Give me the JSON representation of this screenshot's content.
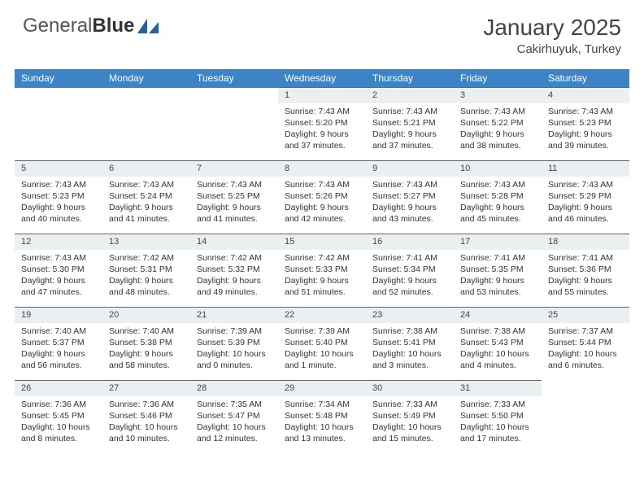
{
  "brand": {
    "part1": "General",
    "part2": "Blue"
  },
  "title": "January 2025",
  "location": "Cakirhuyuk, Turkey",
  "header_bg": "#3d84c6",
  "daynum_bg": "#eceff2",
  "row_border": "#4a6a8a",
  "columns": [
    "Sunday",
    "Monday",
    "Tuesday",
    "Wednesday",
    "Thursday",
    "Friday",
    "Saturday"
  ],
  "weeks": [
    [
      null,
      null,
      null,
      {
        "n": "1",
        "sr": "7:43 AM",
        "ss": "5:20 PM",
        "dl": "9 hours and 37 minutes."
      },
      {
        "n": "2",
        "sr": "7:43 AM",
        "ss": "5:21 PM",
        "dl": "9 hours and 37 minutes."
      },
      {
        "n": "3",
        "sr": "7:43 AM",
        "ss": "5:22 PM",
        "dl": "9 hours and 38 minutes."
      },
      {
        "n": "4",
        "sr": "7:43 AM",
        "ss": "5:23 PM",
        "dl": "9 hours and 39 minutes."
      }
    ],
    [
      {
        "n": "5",
        "sr": "7:43 AM",
        "ss": "5:23 PM",
        "dl": "9 hours and 40 minutes."
      },
      {
        "n": "6",
        "sr": "7:43 AM",
        "ss": "5:24 PM",
        "dl": "9 hours and 41 minutes."
      },
      {
        "n": "7",
        "sr": "7:43 AM",
        "ss": "5:25 PM",
        "dl": "9 hours and 41 minutes."
      },
      {
        "n": "8",
        "sr": "7:43 AM",
        "ss": "5:26 PM",
        "dl": "9 hours and 42 minutes."
      },
      {
        "n": "9",
        "sr": "7:43 AM",
        "ss": "5:27 PM",
        "dl": "9 hours and 43 minutes."
      },
      {
        "n": "10",
        "sr": "7:43 AM",
        "ss": "5:28 PM",
        "dl": "9 hours and 45 minutes."
      },
      {
        "n": "11",
        "sr": "7:43 AM",
        "ss": "5:29 PM",
        "dl": "9 hours and 46 minutes."
      }
    ],
    [
      {
        "n": "12",
        "sr": "7:43 AM",
        "ss": "5:30 PM",
        "dl": "9 hours and 47 minutes."
      },
      {
        "n": "13",
        "sr": "7:42 AM",
        "ss": "5:31 PM",
        "dl": "9 hours and 48 minutes."
      },
      {
        "n": "14",
        "sr": "7:42 AM",
        "ss": "5:32 PM",
        "dl": "9 hours and 49 minutes."
      },
      {
        "n": "15",
        "sr": "7:42 AM",
        "ss": "5:33 PM",
        "dl": "9 hours and 51 minutes."
      },
      {
        "n": "16",
        "sr": "7:41 AM",
        "ss": "5:34 PM",
        "dl": "9 hours and 52 minutes."
      },
      {
        "n": "17",
        "sr": "7:41 AM",
        "ss": "5:35 PM",
        "dl": "9 hours and 53 minutes."
      },
      {
        "n": "18",
        "sr": "7:41 AM",
        "ss": "5:36 PM",
        "dl": "9 hours and 55 minutes."
      }
    ],
    [
      {
        "n": "19",
        "sr": "7:40 AM",
        "ss": "5:37 PM",
        "dl": "9 hours and 56 minutes."
      },
      {
        "n": "20",
        "sr": "7:40 AM",
        "ss": "5:38 PM",
        "dl": "9 hours and 58 minutes."
      },
      {
        "n": "21",
        "sr": "7:39 AM",
        "ss": "5:39 PM",
        "dl": "10 hours and 0 minutes."
      },
      {
        "n": "22",
        "sr": "7:39 AM",
        "ss": "5:40 PM",
        "dl": "10 hours and 1 minute."
      },
      {
        "n": "23",
        "sr": "7:38 AM",
        "ss": "5:41 PM",
        "dl": "10 hours and 3 minutes."
      },
      {
        "n": "24",
        "sr": "7:38 AM",
        "ss": "5:43 PM",
        "dl": "10 hours and 4 minutes."
      },
      {
        "n": "25",
        "sr": "7:37 AM",
        "ss": "5:44 PM",
        "dl": "10 hours and 6 minutes."
      }
    ],
    [
      {
        "n": "26",
        "sr": "7:36 AM",
        "ss": "5:45 PM",
        "dl": "10 hours and 8 minutes."
      },
      {
        "n": "27",
        "sr": "7:36 AM",
        "ss": "5:46 PM",
        "dl": "10 hours and 10 minutes."
      },
      {
        "n": "28",
        "sr": "7:35 AM",
        "ss": "5:47 PM",
        "dl": "10 hours and 12 minutes."
      },
      {
        "n": "29",
        "sr": "7:34 AM",
        "ss": "5:48 PM",
        "dl": "10 hours and 13 minutes."
      },
      {
        "n": "30",
        "sr": "7:33 AM",
        "ss": "5:49 PM",
        "dl": "10 hours and 15 minutes."
      },
      {
        "n": "31",
        "sr": "7:33 AM",
        "ss": "5:50 PM",
        "dl": "10 hours and 17 minutes."
      },
      null
    ]
  ],
  "labels": {
    "sunrise": "Sunrise:",
    "sunset": "Sunset:",
    "daylight": "Daylight:"
  }
}
